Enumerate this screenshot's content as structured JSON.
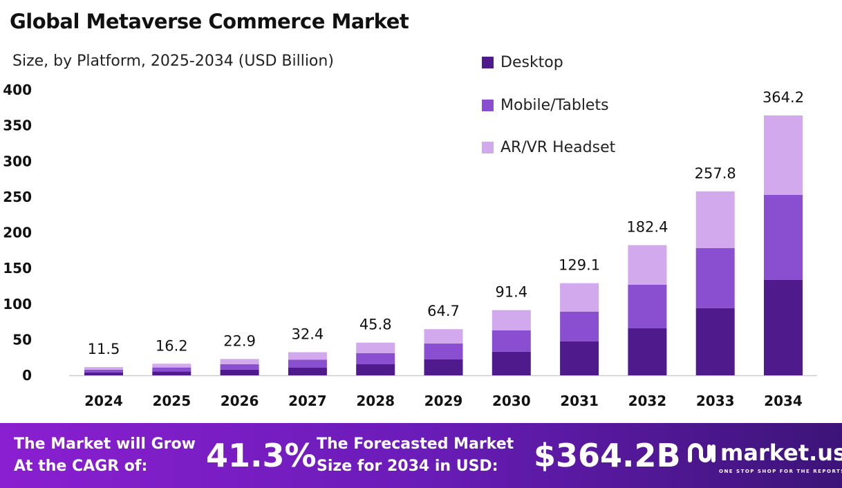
{
  "chart_data": {
    "type": "bar",
    "stacked": true,
    "title": "Global Metaverse Commerce Market",
    "subtitle": "Size, by Platform, 2025-2034 (USD Billion)",
    "categories": [
      "2024",
      "2025",
      "2026",
      "2027",
      "2028",
      "2029",
      "2030",
      "2031",
      "2032",
      "2033",
      "2034"
    ],
    "series": [
      {
        "name": "Desktop",
        "color": "#4f1a8c",
        "values": [
          3.9,
          5.5,
          7.8,
          11.0,
          15.5,
          22.3,
          33.0,
          47.5,
          65.9,
          94.0,
          133.7
        ]
      },
      {
        "name": "Mobile/Tablets",
        "color": "#8a4fd0",
        "values": [
          3.9,
          5.5,
          7.8,
          11.0,
          15.5,
          22.3,
          30.0,
          41.6,
          61.0,
          84.2,
          119.1
        ]
      },
      {
        "name": "AR/VR Headset",
        "color": "#d3a9ee",
        "values": [
          3.7,
          5.2,
          7.3,
          10.4,
          14.8,
          20.1,
          28.4,
          40.0,
          55.5,
          79.6,
          111.4
        ]
      }
    ],
    "totals": [
      "11.5",
      "16.2",
      "22.9",
      "32.4",
      "45.8",
      "64.7",
      "91.4",
      "129.1",
      "182.4",
      "257.8",
      "364.2"
    ],
    "yticks": [
      "0",
      "50",
      "100",
      "150",
      "200",
      "250",
      "300",
      "350",
      "400"
    ],
    "ylim": [
      0,
      400
    ],
    "grid": false,
    "legend": "top-right"
  },
  "banner": {
    "cagr_label": "The Market will Grow At the CAGR of:",
    "cagr_value": "41.3%",
    "forecast_label": "The Forecasted Market Size for 2034 in USD:",
    "forecast_value": "$364.2B",
    "logo_name": "market.us",
    "logo_tagline": "ONE STOP SHOP FOR THE REPORTS"
  }
}
